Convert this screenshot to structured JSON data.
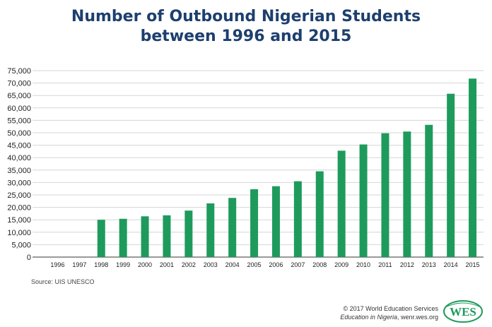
{
  "title": {
    "line1": "Number of Outbound Nigerian Students",
    "line2": "between 1996 and 2015"
  },
  "source": "Source: UIS UNESCO",
  "footer": {
    "copyright": "© 2017 World Education Services",
    "publication_italic": "Education in Nigeria",
    "publication_rest": ", wenr.wes.org"
  },
  "logo_text": "WES",
  "colors": {
    "bar": "#1e9b5c",
    "title": "#1d3f6e",
    "grid": "#d6d6d6",
    "axis": "#333333",
    "logo": "#1e9b5c"
  },
  "chart_data": {
    "type": "bar",
    "categories": [
      "1996",
      "1997",
      "1998",
      "1999",
      "2000",
      "2001",
      "2002",
      "2003",
      "2004",
      "2005",
      "2006",
      "2007",
      "2008",
      "2009",
      "2010",
      "2011",
      "2012",
      "2013",
      "2014",
      "2015"
    ],
    "values": [
      0,
      0,
      15000,
      15400,
      16400,
      16800,
      18700,
      21600,
      23800,
      27300,
      28500,
      30500,
      34500,
      42800,
      45300,
      49800,
      50500,
      53200,
      65700,
      71800
    ],
    "ylim": [
      0,
      75000
    ],
    "yticks": [
      0,
      5000,
      10000,
      15000,
      20000,
      25000,
      30000,
      35000,
      40000,
      45000,
      50000,
      55000,
      60000,
      65000,
      70000,
      75000
    ],
    "ytick_labels": [
      "0",
      "5,000",
      "10,000",
      "15,000",
      "20,000",
      "25,000",
      "30,000",
      "35,000",
      "40,000",
      "45,000",
      "50,000",
      "55,000",
      "60,000",
      "65,000",
      "70,000",
      "75,000"
    ],
    "grid": true,
    "xlabel": "",
    "ylabel": ""
  }
}
